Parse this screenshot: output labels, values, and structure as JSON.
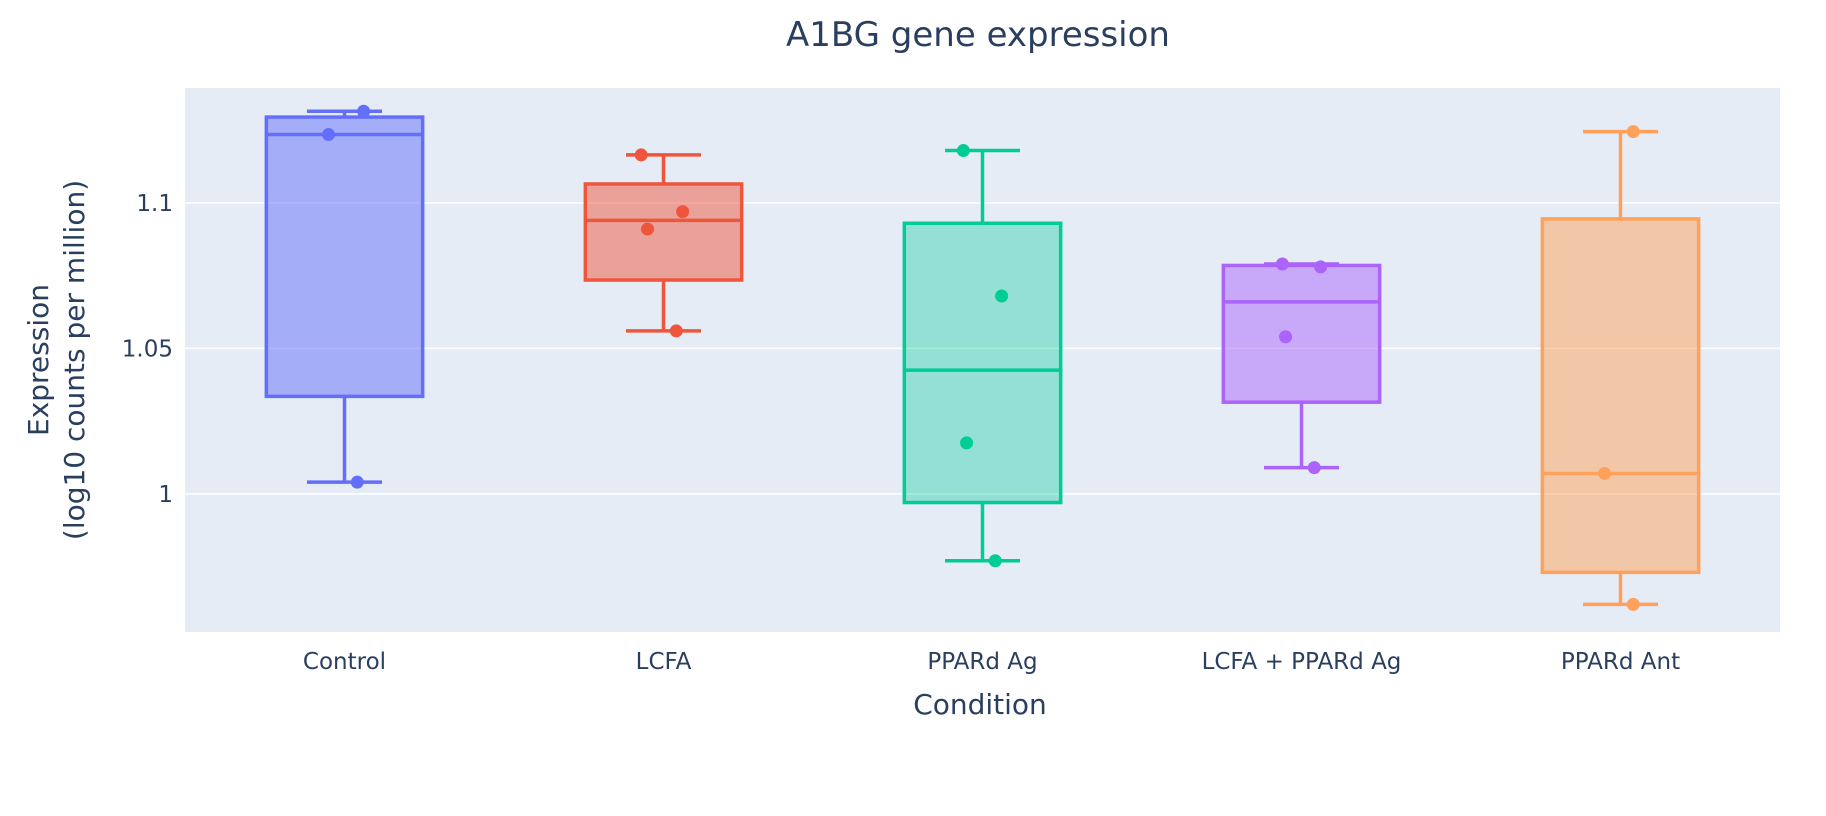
{
  "chart_data": {
    "type": "box",
    "title": "A1BG gene expression",
    "xlabel": "Condition",
    "ylabel_lines": [
      "Expression",
      "(log10 counts per million)"
    ],
    "ylim": [
      0.9525,
      1.1395
    ],
    "yticks": [
      1,
      1.05,
      1.1
    ],
    "ytick_labels": [
      "1",
      "1.05",
      "1.1"
    ],
    "grid": true,
    "legend": "none",
    "plot_background": "#e5ecf6",
    "categories": [
      "Control",
      "LCFA",
      "PPARd Ag",
      "LCFA + PPARd Ag",
      "PPARd Ant"
    ],
    "series": [
      {
        "color": "#636efa",
        "fill": "rgba(99,110,250,0.5)",
        "q1": 1.0335,
        "median": 1.1235,
        "q3": 1.1295,
        "whisker_low": 1.004,
        "whisker_high": 1.1315,
        "points": [
          1.1315,
          1.1235,
          1.004
        ],
        "point_offsets": [
          0.06,
          -0.05,
          0.04
        ]
      },
      {
        "color": "#ef553b",
        "fill": "rgba(239,85,59,0.5)",
        "q1": 1.0735,
        "median": 1.094,
        "q3": 1.1065,
        "whisker_low": 1.056,
        "whisker_high": 1.1165,
        "points": [
          1.1165,
          1.097,
          1.091,
          1.056
        ],
        "point_offsets": [
          -0.07,
          0.06,
          -0.05,
          0.04
        ]
      },
      {
        "color": "#00cc96",
        "fill": "rgba(0,204,150,0.35)",
        "q1": 0.997,
        "median": 1.0425,
        "q3": 1.093,
        "whisker_low": 0.977,
        "whisker_high": 1.118,
        "points": [
          1.118,
          1.068,
          1.0175,
          0.977
        ],
        "point_offsets": [
          -0.06,
          0.06,
          -0.05,
          0.04
        ]
      },
      {
        "color": "#ab63fa",
        "fill": "rgba(171,99,250,0.5)",
        "q1": 1.0315,
        "median": 1.066,
        "q3": 1.0785,
        "whisker_low": 1.009,
        "whisker_high": 1.079,
        "points": [
          1.079,
          1.078,
          1.054,
          1.009
        ],
        "point_offsets": [
          -0.06,
          0.06,
          -0.05,
          0.04
        ]
      },
      {
        "color": "#ffa15a",
        "fill": "rgba(255,161,90,0.5)",
        "q1": 0.973,
        "median": 1.007,
        "q3": 1.0945,
        "whisker_low": 0.962,
        "whisker_high": 1.1245,
        "points": [
          1.1245,
          1.007,
          0.962
        ],
        "point_offsets": [
          0.04,
          -0.05,
          0.04
        ]
      }
    ]
  }
}
